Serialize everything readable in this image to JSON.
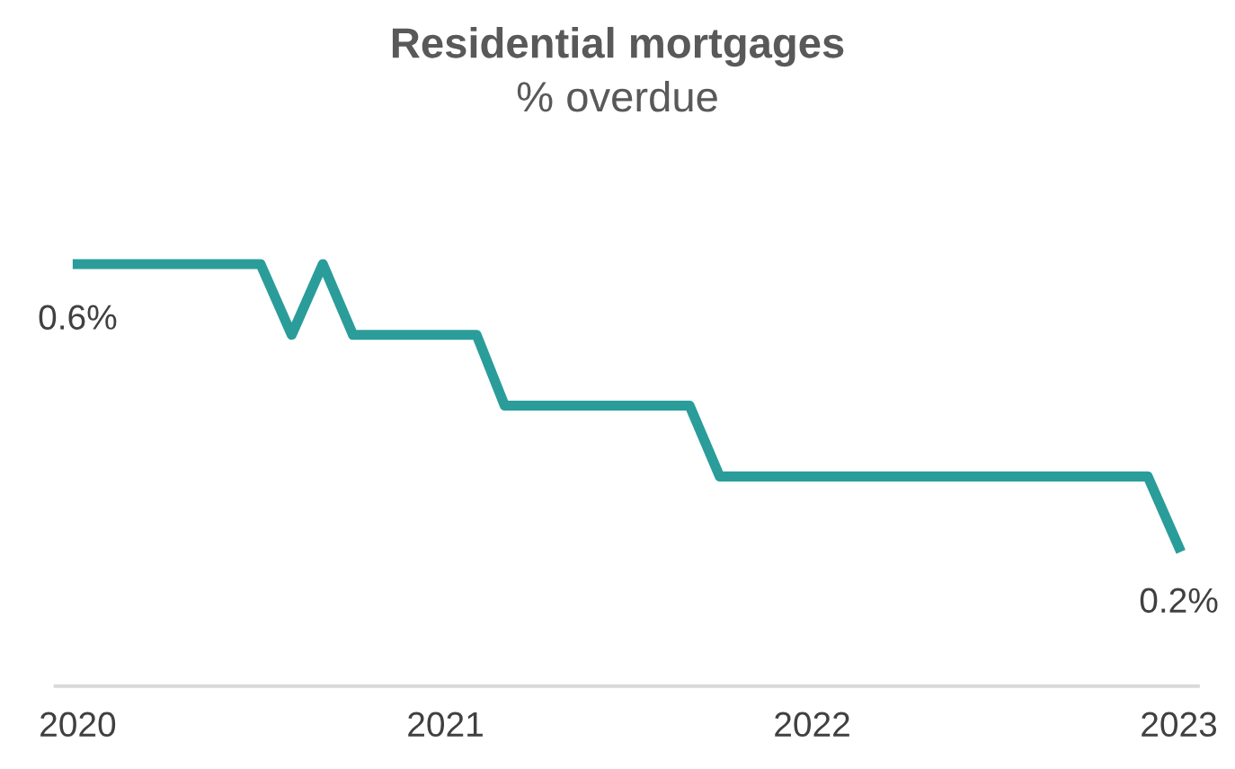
{
  "chart_data": {
    "type": "line",
    "title": "Residential mortgages",
    "subtitle": "% overdue",
    "x": [
      "2020-01",
      "2020-07",
      "2020-08",
      "2020-09",
      "2020-10",
      "2021-02",
      "2021-03",
      "2021-09",
      "2021-10",
      "2022-12",
      "2023-01"
    ],
    "series": [
      {
        "color": "#2a9d9a",
        "values": [
          0.6,
          0.6,
          0.5,
          0.6,
          0.5,
          0.5,
          0.4,
          0.4,
          0.3,
          0.3,
          0.2
        ],
        "value_labels": [
          "0.6%",
          null,
          null,
          null,
          null,
          null,
          null,
          null,
          null,
          null,
          "0.2%"
        ]
      }
    ],
    "xlim": [
      "2019-12-10",
      "2023-01-20"
    ],
    "xticks": [
      {
        "value": "2020-01-01",
        "label": "2020"
      },
      {
        "value": "2021-01-01",
        "label": "2021"
      },
      {
        "value": "2022-01-01",
        "label": "2022"
      },
      {
        "value": "2023-01-01",
        "label": "2023"
      }
    ],
    "tick_labels": "x",
    "grid": false,
    "marker": "none",
    "line_style": "solid"
  }
}
